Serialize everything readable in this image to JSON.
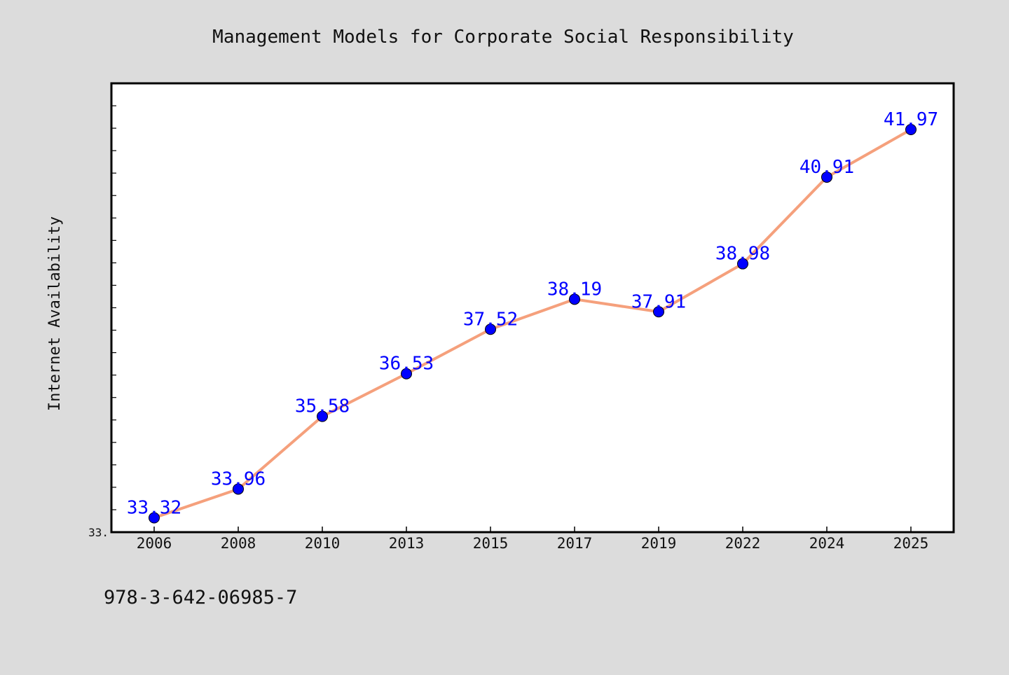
{
  "chart_data": {
    "type": "line",
    "title": "Management Models for Corporate Social Responsibility",
    "ylabel": "Internet Availability",
    "xlabel": "",
    "categories": [
      "2006",
      "2008",
      "2010",
      "2013",
      "2015",
      "2017",
      "2019",
      "2022",
      "2024",
      "2025"
    ],
    "series": [
      {
        "values": [
          33.32,
          33.96,
          35.58,
          36.53,
          37.52,
          38.19,
          37.91,
          38.98,
          40.91,
          41.97
        ],
        "data_labels": [
          "33.32",
          "33.96",
          "35.58",
          "36.53",
          "37.52",
          "38.19",
          "37.91",
          "38.98",
          "40.91",
          "41.97"
        ],
        "line_color": "#f5a07c",
        "marker_color": "#0000ff",
        "label_color": "#0000ff"
      }
    ],
    "ylim": [
      33.0,
      43.0
    ],
    "y_tick_label": "33.",
    "grid": false,
    "legend": "none"
  },
  "footer": {
    "isbn": "978-3-642-06985-7"
  },
  "colors": {
    "background": "#dcdcdc",
    "plot_background": "#ffffff",
    "frame": "#000000"
  }
}
